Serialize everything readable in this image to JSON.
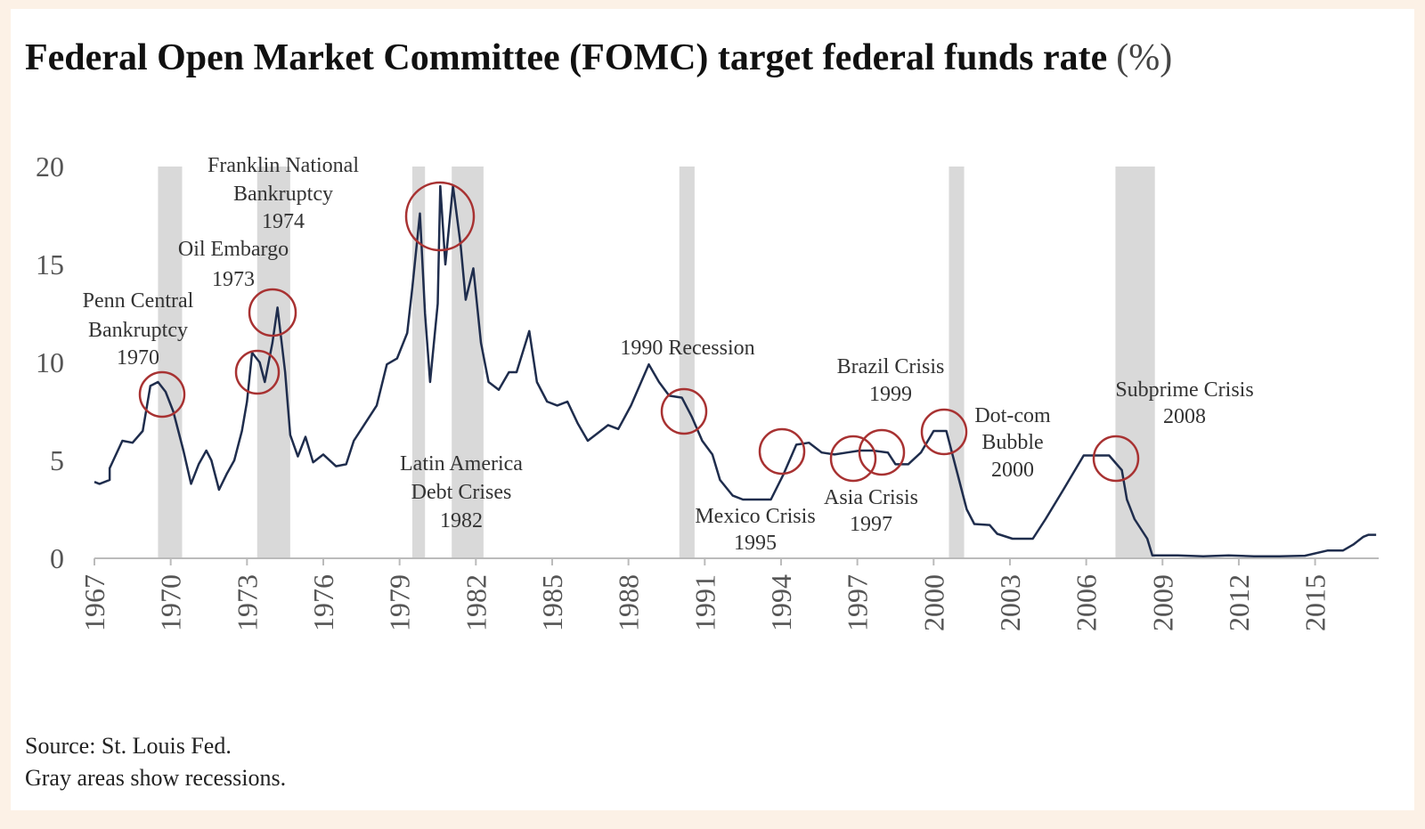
{
  "chart_data": {
    "type": "line",
    "title": "Federal Open Market Committee (FOMC) target federal funds rate",
    "y_unit": "(%)",
    "xlim": [
      1967,
      2017.5
    ],
    "ylim": [
      0,
      20
    ],
    "xticks": [
      1967,
      1970,
      1973,
      1976,
      1979,
      1982,
      1985,
      1988,
      1991,
      1994,
      1997,
      2000,
      2003,
      2006,
      2009,
      2012,
      2015
    ],
    "yticks": [
      0,
      5,
      10,
      15,
      20
    ],
    "recessions": [
      [
        1969.5,
        1970.45
      ],
      [
        1973.4,
        1974.7
      ],
      [
        1979.5,
        1980.0
      ],
      [
        1981.05,
        1982.3
      ],
      [
        1990.0,
        1990.6
      ],
      [
        2000.6,
        2001.2
      ],
      [
        2007.15,
        2008.7
      ]
    ],
    "series": [
      {
        "name": "Federal funds rate",
        "color": "#1f2d4d",
        "x": [
          1967.0,
          1967.2,
          1967.6,
          1967.6,
          1968.1,
          1968.5,
          1968.9,
          1969.2,
          1969.5,
          1969.8,
          1970.1,
          1970.5,
          1970.8,
          1971.1,
          1971.4,
          1971.6,
          1971.9,
          1972.2,
          1972.5,
          1972.8,
          1973.0,
          1973.2,
          1973.5,
          1973.7,
          1974.0,
          1974.2,
          1974.5,
          1974.7,
          1975.0,
          1975.3,
          1975.6,
          1976.0,
          1976.5,
          1976.9,
          1977.2,
          1977.6,
          1978.1,
          1978.5,
          1978.9,
          1979.3,
          1979.5,
          1979.8,
          1980.0,
          1980.2,
          1980.5,
          1980.6,
          1980.8,
          1981.1,
          1981.4,
          1981.6,
          1981.9,
          1982.2,
          1982.5,
          1982.9,
          1983.3,
          1983.6,
          1984.1,
          1984.4,
          1984.8,
          1985.2,
          1985.6,
          1986.0,
          1986.4,
          1986.8,
          1987.2,
          1987.6,
          1988.1,
          1988.5,
          1988.8,
          1989.2,
          1989.6,
          1990.1,
          1990.5,
          1990.9,
          1991.3,
          1991.6,
          1992.1,
          1992.5,
          1993.1,
          1993.6,
          1994.1,
          1994.6,
          1995.1,
          1995.6,
          1996.1,
          1996.6,
          1997.1,
          1997.6,
          1998.2,
          1998.5,
          1999.0,
          1999.5,
          2000.0,
          2000.5,
          2000.9,
          2001.3,
          2001.6,
          2002.2,
          2002.5,
          2003.1,
          2003.9,
          2004.4,
          2005.1,
          2005.9,
          2006.9,
          2007.4,
          2007.6,
          2007.9,
          2008.4,
          2008.6,
          2009.6,
          2010.6,
          2011.6,
          2012.6,
          2013.6,
          2014.6,
          2015.5,
          2016.1,
          2016.5,
          2016.9,
          2017.1,
          2017.4
        ],
        "values": [
          3.9,
          3.8,
          4.0,
          4.6,
          6.0,
          5.9,
          6.5,
          8.8,
          9.0,
          8.5,
          7.5,
          5.5,
          3.8,
          4.8,
          5.5,
          5.0,
          3.5,
          4.3,
          5.0,
          6.5,
          8.0,
          10.5,
          10.0,
          9.0,
          11.0,
          12.8,
          9.5,
          6.3,
          5.2,
          6.2,
          4.9,
          5.3,
          4.7,
          4.8,
          6.0,
          6.8,
          7.8,
          9.9,
          10.2,
          11.5,
          13.8,
          17.6,
          12.5,
          9.0,
          13.0,
          19.0,
          15.0,
          19.0,
          16.0,
          13.2,
          14.8,
          11.0,
          9.0,
          8.6,
          9.5,
          9.5,
          11.6,
          9.0,
          8.0,
          7.8,
          8.0,
          6.9,
          6.0,
          6.4,
          6.8,
          6.6,
          7.8,
          9.0,
          9.9,
          9.0,
          8.3,
          8.2,
          7.2,
          6.0,
          5.3,
          4.0,
          3.2,
          3.0,
          3.0,
          3.0,
          4.3,
          5.8,
          5.9,
          5.4,
          5.3,
          5.4,
          5.5,
          5.5,
          5.4,
          4.8,
          4.8,
          5.4,
          6.5,
          6.5,
          4.5,
          2.5,
          1.75,
          1.7,
          1.25,
          1.0,
          1.0,
          2.0,
          3.5,
          5.25,
          5.25,
          4.5,
          3.0,
          2.0,
          1.0,
          0.15,
          0.15,
          0.1,
          0.15,
          0.1,
          0.1,
          0.13,
          0.4,
          0.4,
          0.7,
          1.1,
          1.2,
          1.2
        ]
      }
    ],
    "annotations": [
      {
        "lines": [
          "Penn Central",
          "Bankruptcy",
          "1970"
        ]
      },
      {
        "lines": [
          "Oil Embargo",
          "1973"
        ]
      },
      {
        "lines": [
          "Franklin National",
          "Bankruptcy",
          "1974"
        ]
      },
      {
        "lines": [
          "Latin America",
          "Debt Crises",
          "1982"
        ]
      },
      {
        "lines": [
          "1990 Recession"
        ]
      },
      {
        "lines": [
          "Mexico Crisis",
          "1995"
        ]
      },
      {
        "lines": [
          "Asia Crisis",
          "1997"
        ]
      },
      {
        "lines": [
          "Brazil Crisis",
          "1999"
        ]
      },
      {
        "lines": [
          "Dot-com",
          "Bubble",
          "2000"
        ]
      },
      {
        "lines": [
          "Subprime Crisis",
          "2008"
        ]
      }
    ],
    "notes": [
      "Source: St. Louis Fed.",
      "Gray areas show recessions."
    ]
  }
}
